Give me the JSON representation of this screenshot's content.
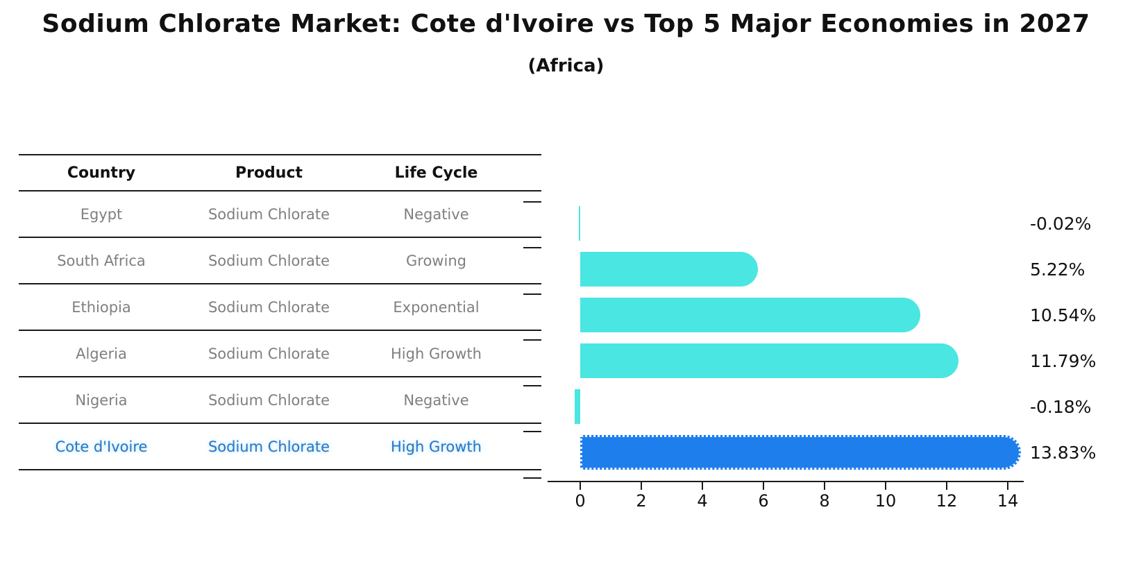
{
  "page": {
    "background": "#ffffff"
  },
  "chart_data": {
    "type": "bar",
    "orientation": "horizontal",
    "title": "Sodium Chlorate Market: Cote d'Ivoire vs Top 5 Major Economies in 2027",
    "subtitle": "(Africa)",
    "categories": [
      "Egypt",
      "South Africa",
      "Ethiopia",
      "Algeria",
      "Nigeria",
      "Cote d'Ivoire"
    ],
    "values": [
      -0.02,
      5.22,
      10.54,
      11.79,
      -0.18,
      13.83
    ],
    "value_labels": [
      "-0.02%",
      "5.22%",
      "10.54%",
      "11.79%",
      "-0.18%",
      "13.83%"
    ],
    "xlabel": "",
    "ylabel": "",
    "xlim": [
      0,
      14
    ],
    "x_ticks": [
      "0",
      "2",
      "4",
      "6",
      "8",
      "10",
      "12",
      "14"
    ],
    "grid": "off",
    "legend": "none",
    "bar_color": "#4AE6E2",
    "highlight_index": 5,
    "highlight_bar_color": "#1E7EEC",
    "highlight_text_color": "#2779C4"
  },
  "table": {
    "headers": [
      "Country",
      "Product",
      "Life Cycle"
    ],
    "rows": [
      {
        "country": "Egypt",
        "product": "Sodium Chlorate",
        "life_cycle": "Negative",
        "highlight": false
      },
      {
        "country": "South Africa",
        "product": "Sodium Chlorate",
        "life_cycle": "Growing",
        "highlight": false
      },
      {
        "country": "Ethiopia",
        "product": "Sodium Chlorate",
        "life_cycle": "Exponential",
        "highlight": false
      },
      {
        "country": "Algeria",
        "product": "Sodium Chlorate",
        "life_cycle": "High Growth",
        "highlight": false
      },
      {
        "country": "Nigeria",
        "product": "Sodium Chlorate",
        "life_cycle": "Negative",
        "highlight": false
      },
      {
        "country": "Cote d'Ivoire",
        "product": "Sodium Chlorate",
        "life_cycle": "High Growth",
        "highlight": true
      }
    ]
  }
}
